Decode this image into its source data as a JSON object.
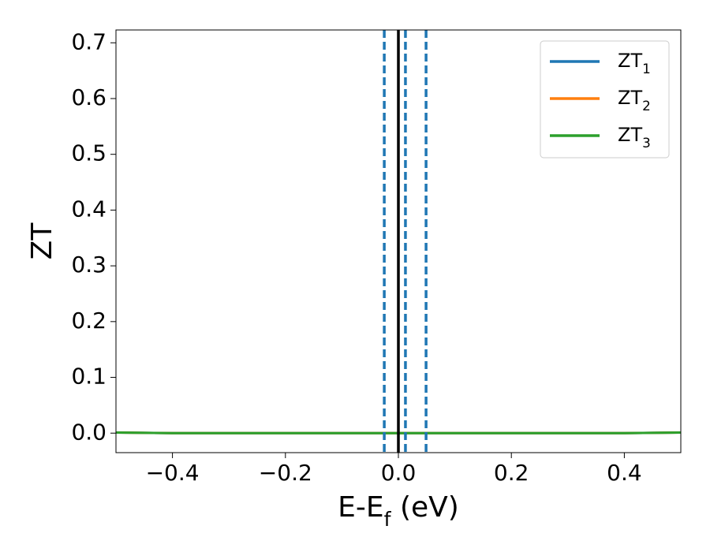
{
  "chart_data": {
    "type": "line",
    "x_label": "E-E_f (eV)",
    "y_label": "ZT",
    "x": [
      -0.5,
      -0.4,
      -0.3,
      -0.2,
      -0.1,
      0.0,
      0.1,
      0.2,
      0.3,
      0.4,
      0.5
    ],
    "series": [
      {
        "name": "ZT_1",
        "color": "#1f77b4",
        "values": [
          0.001,
          0,
          0,
          0,
          0,
          0,
          0,
          0,
          0,
          0,
          0.001
        ]
      },
      {
        "name": "ZT_2",
        "color": "#ff7f0e",
        "values": [
          0.001,
          0,
          0,
          0,
          0,
          0,
          0,
          0,
          0,
          0,
          0.001
        ]
      },
      {
        "name": "ZT_3",
        "color": "#2ca02c",
        "values": [
          0.001,
          0,
          0,
          0,
          0,
          0,
          0,
          0,
          0,
          0,
          0.001
        ]
      }
    ],
    "vlines": [
      {
        "x": -0.025,
        "color": "#1f77b4",
        "dashed": true
      },
      {
        "x": 0.0125,
        "color": "#1f77b4",
        "dashed": true
      },
      {
        "x": 0.049,
        "color": "#1f77b4",
        "dashed": true
      },
      {
        "x": 0,
        "color": "#000000",
        "dashed": false
      }
    ],
    "xlim": [
      -0.5,
      0.5
    ],
    "ylim": [
      -0.035,
      0.723
    ],
    "xticks": [
      {
        "value": -0.4,
        "label": "−0.4"
      },
      {
        "value": -0.2,
        "label": "−0.2"
      },
      {
        "value": 0,
        "label": "0.0"
      },
      0.2,
      0.4
    ],
    "yticks": [
      {
        "value": 0,
        "label": "0.0"
      },
      0.1,
      0.2,
      0.3,
      0.4,
      0.5,
      0.6,
      0.7
    ],
    "legend": "upper right",
    "grid": false
  }
}
